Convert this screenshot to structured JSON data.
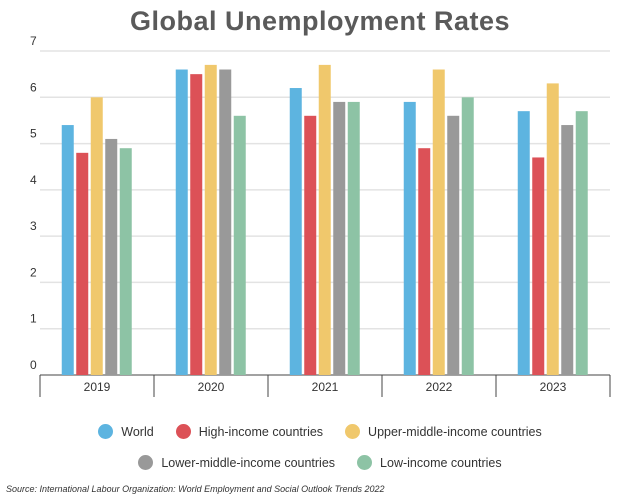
{
  "chart_data": {
    "type": "bar",
    "title": "Global Unemployment Rates",
    "categories": [
      "2019",
      "2020",
      "2021",
      "2022",
      "2023"
    ],
    "ylim": [
      0,
      7
    ],
    "yticks": [
      "0",
      "1",
      "2",
      "3",
      "4",
      "5",
      "6",
      "7"
    ],
    "grid": true,
    "legend_placement": "bottom",
    "series": [
      {
        "name": "World",
        "color": "#5DB4E0",
        "values": [
          5.4,
          6.6,
          6.2,
          5.9,
          5.7
        ]
      },
      {
        "name": "High-income countries",
        "color": "#DC5157",
        "values": [
          4.8,
          6.5,
          5.6,
          4.9,
          4.7
        ]
      },
      {
        "name": "Upper-middle-income countries",
        "color": "#F0C86C",
        "values": [
          6.0,
          6.7,
          6.7,
          6.6,
          6.3
        ]
      },
      {
        "name": "Lower-middle-income countries",
        "color": "#999999",
        "values": [
          5.1,
          6.6,
          5.9,
          5.6,
          5.4
        ]
      },
      {
        "name": "Low-income countries",
        "color": "#8DC3A5",
        "values": [
          4.9,
          5.6,
          5.9,
          6.0,
          5.7
        ]
      }
    ]
  },
  "source": "Source: International Labour Organization: World Employment and Social Outlook Trends 2022"
}
